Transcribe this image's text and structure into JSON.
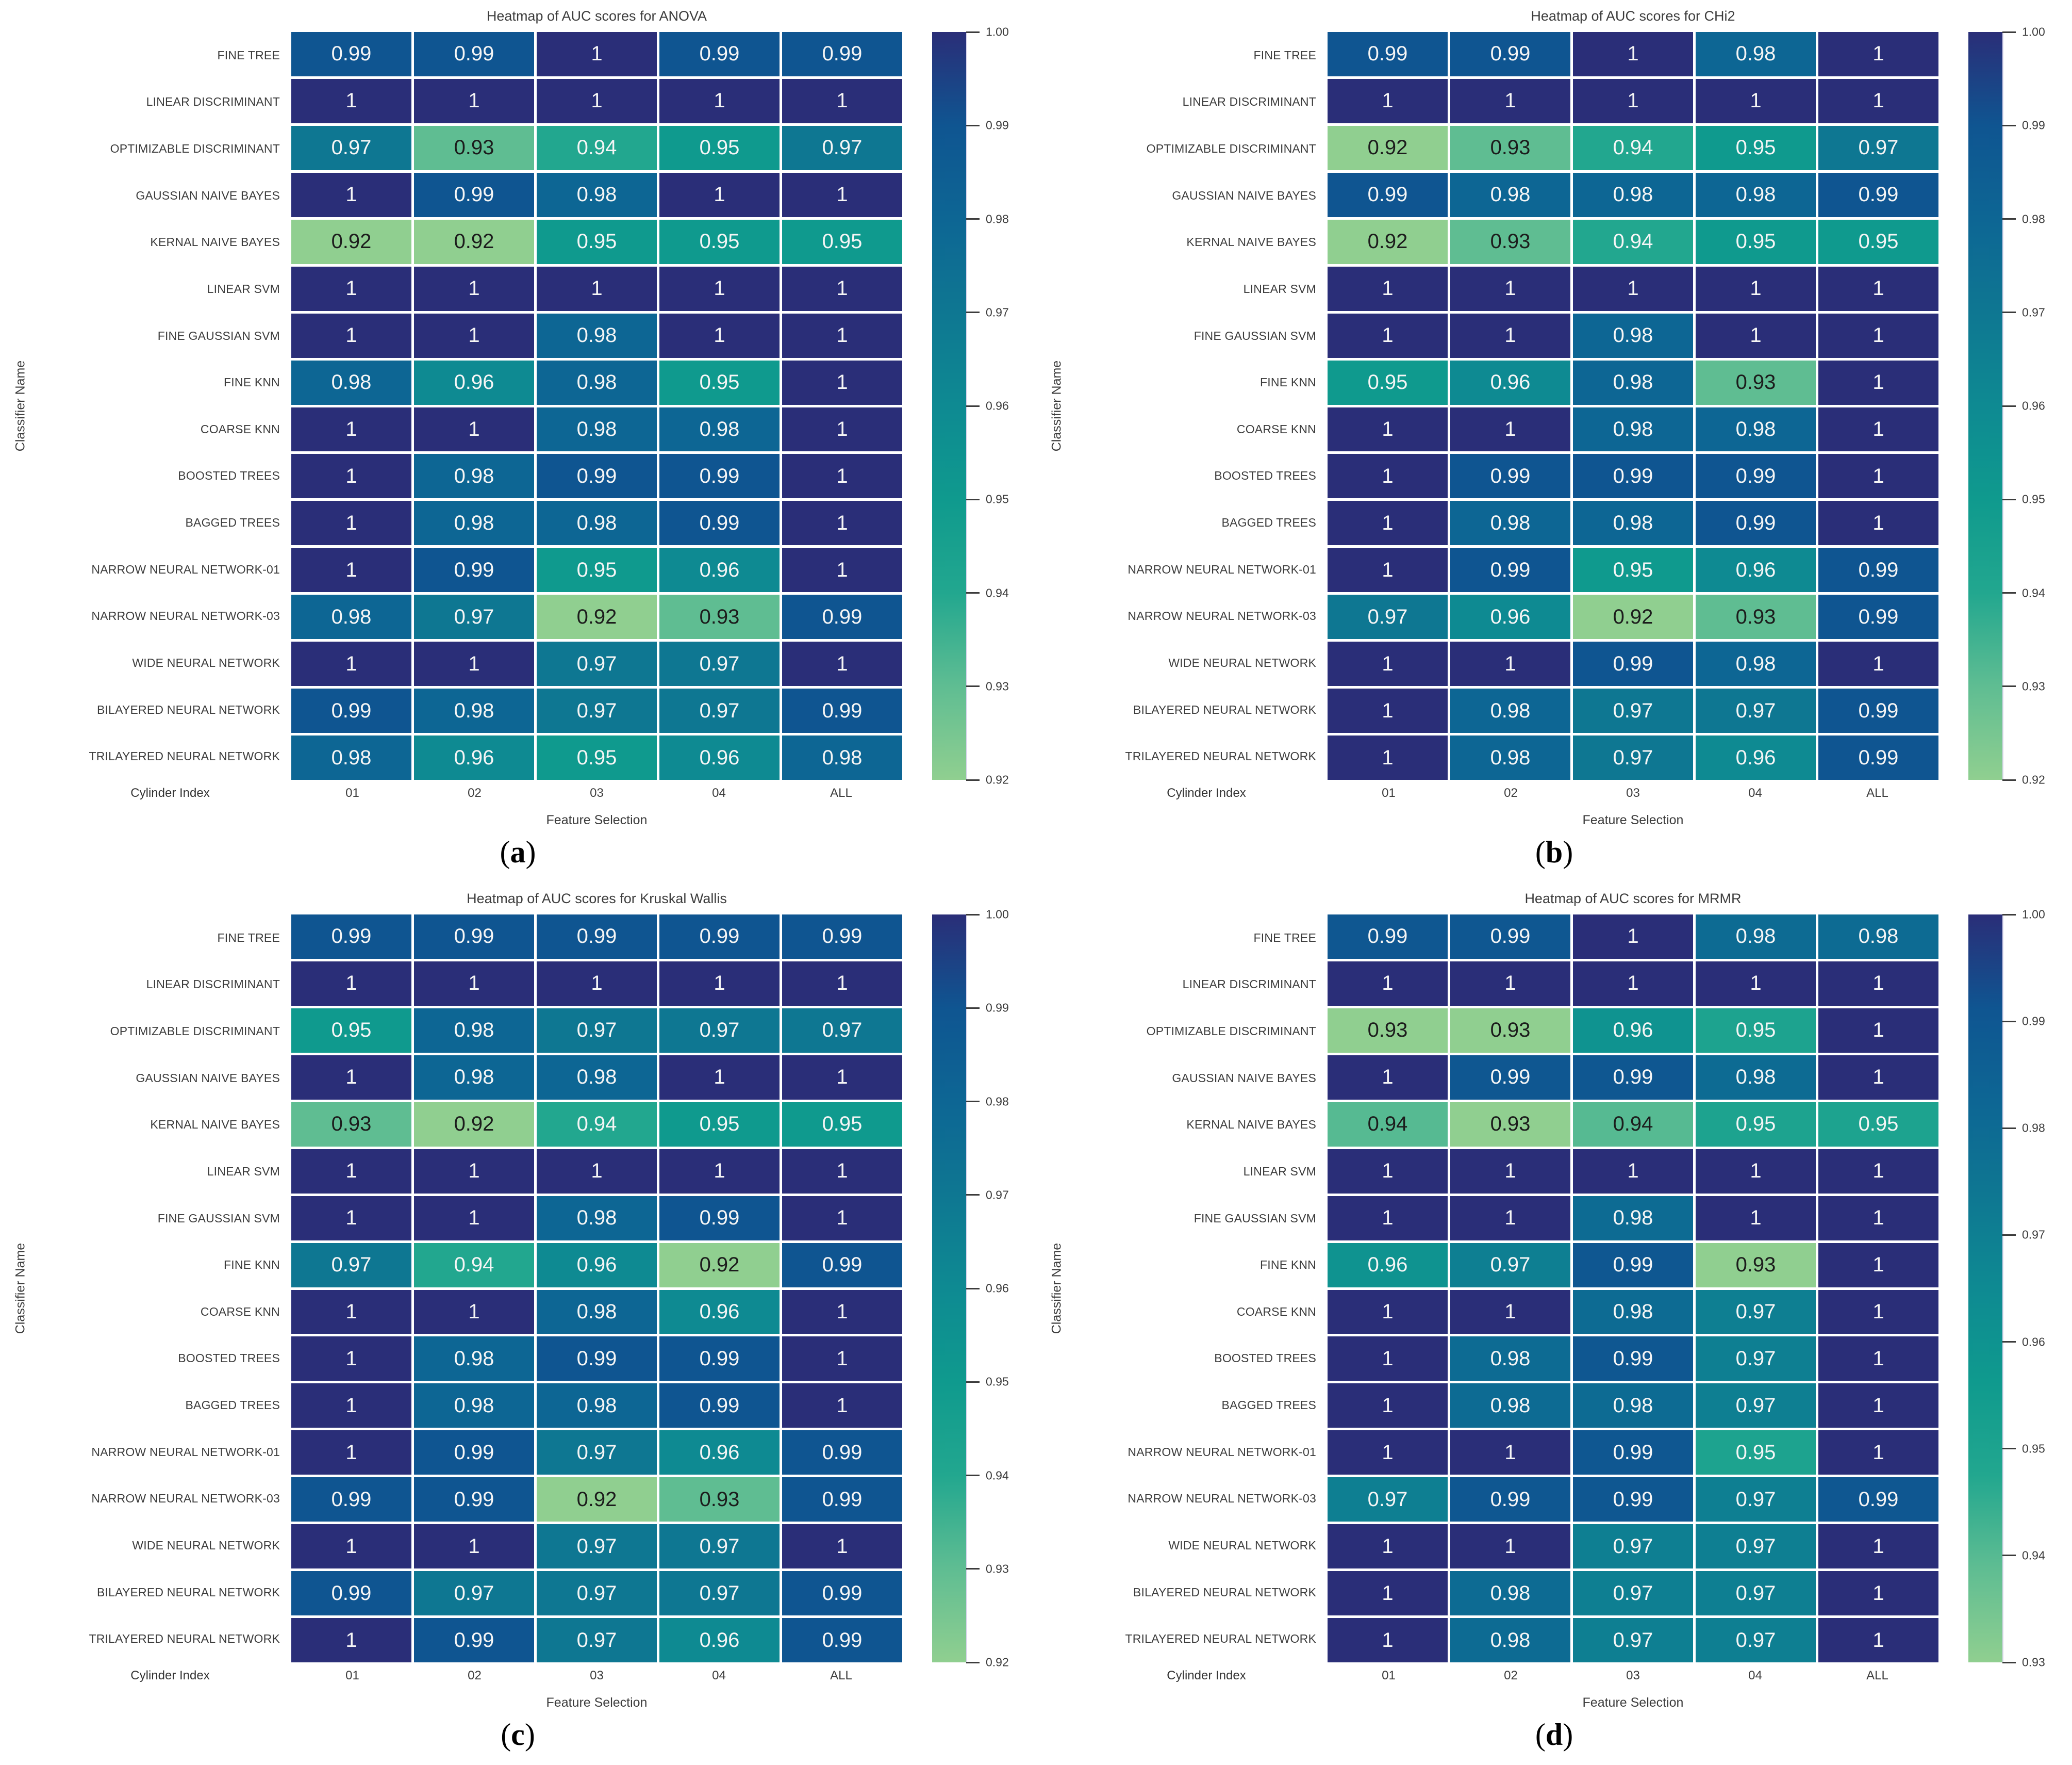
{
  "colors": {
    "background": "#ffffff",
    "colormap_stops": [
      "#90cf90",
      "#5fbd92",
      "#22a78f",
      "#0f9a8e",
      "#0e8a92",
      "#0e7792",
      "#0d6694",
      "#0f5591",
      "#2a2e78"
    ],
    "cell_text_light": "#f5f5f5",
    "cell_text_dark": "#1c1c1c",
    "axis_text": "#3c3c3c"
  },
  "shared": {
    "ylabel": "Classifier Name",
    "xlabel": "Feature Selection",
    "corner_label": "Cylinder Index",
    "columns": [
      "01",
      "02",
      "03",
      "04",
      "ALL"
    ],
    "classifiers": [
      "FINE TREE",
      "LINEAR DISCRIMINANT",
      "OPTIMIZABLE DISCRIMINANT",
      "GAUSSIAN NAIVE BAYES",
      "KERNAL NAIVE BAYES",
      "LINEAR SVM",
      "FINE GAUSSIAN SVM",
      "FINE KNN",
      "COARSE KNN",
      "BOOSTED TREES",
      "BAGGED TREES",
      "NARROW NEURAL NETWORK-01",
      "NARROW NEURAL NETWORK-03",
      "WIDE NEURAL NETWORK",
      "BILAYERED NEURAL NETWORK",
      "TRILAYERED NEURAL NETWORK"
    ]
  },
  "chart_data": [
    {
      "type": "heatmap",
      "panel": "a",
      "caption": "(a)",
      "title": "Heatmap of AUC scores for ANOVA",
      "xlabel": "Feature Selection",
      "ylabel": "Classifier Name",
      "corner_label": "Cylinder Index",
      "columns": [
        "01",
        "02",
        "03",
        "04",
        "ALL"
      ],
      "rows": [
        "FINE TREE",
        "LINEAR DISCRIMINANT",
        "OPTIMIZABLE DISCRIMINANT",
        "GAUSSIAN NAIVE BAYES",
        "KERNAL NAIVE BAYES",
        "LINEAR SVM",
        "FINE GAUSSIAN SVM",
        "FINE KNN",
        "COARSE KNN",
        "BOOSTED TREES",
        "BAGGED TREES",
        "NARROW NEURAL NETWORK-01",
        "NARROW NEURAL NETWORK-03",
        "WIDE NEURAL NETWORK",
        "BILAYERED NEURAL NETWORK",
        "TRILAYERED NEURAL NETWORK"
      ],
      "values": [
        [
          0.99,
          0.99,
          1,
          0.99,
          0.99
        ],
        [
          1,
          1,
          1,
          1,
          1
        ],
        [
          0.97,
          0.93,
          0.94,
          0.95,
          0.97
        ],
        [
          1,
          0.99,
          0.98,
          1,
          1
        ],
        [
          0.92,
          0.92,
          0.95,
          0.95,
          0.95
        ],
        [
          1,
          1,
          1,
          1,
          1
        ],
        [
          1,
          1,
          0.98,
          1,
          1
        ],
        [
          0.98,
          0.96,
          0.98,
          0.95,
          1
        ],
        [
          1,
          1,
          0.98,
          0.98,
          1
        ],
        [
          1,
          0.98,
          0.99,
          0.99,
          1
        ],
        [
          1,
          0.98,
          0.98,
          0.99,
          1
        ],
        [
          1,
          0.99,
          0.95,
          0.96,
          1
        ],
        [
          0.98,
          0.97,
          0.92,
          0.93,
          0.99
        ],
        [
          1,
          1,
          0.97,
          0.97,
          1
        ],
        [
          0.99,
          0.98,
          0.97,
          0.97,
          0.99
        ],
        [
          0.98,
          0.96,
          0.95,
          0.96,
          0.98
        ]
      ],
      "vmin": 0.92,
      "vmax": 1.0,
      "colorbar_ticks": [
        "1.00",
        "0.99",
        "0.98",
        "0.97",
        "0.96",
        "0.95",
        "0.94",
        "0.93",
        "0.92"
      ]
    },
    {
      "type": "heatmap",
      "panel": "b",
      "caption": "(b)",
      "title": "Heatmap of AUC scores for CHi2",
      "xlabel": "Feature Selection",
      "ylabel": "Classifier Name",
      "corner_label": "Cylinder Index",
      "columns": [
        "01",
        "02",
        "03",
        "04",
        "ALL"
      ],
      "rows": [
        "FINE TREE",
        "LINEAR DISCRIMINANT",
        "OPTIMIZABLE DISCRIMINANT",
        "GAUSSIAN NAIVE BAYES",
        "KERNAL NAIVE BAYES",
        "LINEAR SVM",
        "FINE GAUSSIAN SVM",
        "FINE KNN",
        "COARSE KNN",
        "BOOSTED TREES",
        "BAGGED TREES",
        "NARROW NEURAL NETWORK-01",
        "NARROW NEURAL NETWORK-03",
        "WIDE NEURAL NETWORK",
        "BILAYERED NEURAL NETWORK",
        "TRILAYERED NEURAL NETWORK"
      ],
      "values": [
        [
          0.99,
          0.99,
          1,
          0.98,
          1
        ],
        [
          1,
          1,
          1,
          1,
          1
        ],
        [
          0.92,
          0.93,
          0.94,
          0.95,
          0.97
        ],
        [
          0.99,
          0.98,
          0.98,
          0.98,
          0.99
        ],
        [
          0.92,
          0.93,
          0.94,
          0.95,
          0.95
        ],
        [
          1,
          1,
          1,
          1,
          1
        ],
        [
          1,
          1,
          0.98,
          1,
          1
        ],
        [
          0.95,
          0.96,
          0.98,
          0.93,
          1
        ],
        [
          1,
          1,
          0.98,
          0.98,
          1
        ],
        [
          1,
          0.99,
          0.99,
          0.99,
          1
        ],
        [
          1,
          0.98,
          0.98,
          0.99,
          1
        ],
        [
          1,
          0.99,
          0.95,
          0.96,
          0.99
        ],
        [
          0.97,
          0.96,
          0.92,
          0.93,
          0.99
        ],
        [
          1,
          1,
          0.99,
          0.98,
          1
        ],
        [
          1,
          0.98,
          0.97,
          0.97,
          0.99
        ],
        [
          1,
          0.98,
          0.97,
          0.96,
          0.99
        ]
      ],
      "vmin": 0.92,
      "vmax": 1.0,
      "colorbar_ticks": [
        "1.00",
        "0.99",
        "0.98",
        "0.97",
        "0.96",
        "0.95",
        "0.94",
        "0.93",
        "0.92"
      ]
    },
    {
      "type": "heatmap",
      "panel": "c",
      "caption": "(c)",
      "title": "Heatmap of AUC scores for Kruskal Wallis",
      "xlabel": "Feature Selection",
      "ylabel": "Classifier Name",
      "corner_label": "Cylinder Index",
      "columns": [
        "01",
        "02",
        "03",
        "04",
        "ALL"
      ],
      "rows": [
        "FINE TREE",
        "LINEAR DISCRIMINANT",
        "OPTIMIZABLE DISCRIMINANT",
        "GAUSSIAN NAIVE BAYES",
        "KERNAL NAIVE BAYES",
        "LINEAR SVM",
        "FINE GAUSSIAN SVM",
        "FINE KNN",
        "COARSE KNN",
        "BOOSTED TREES",
        "BAGGED TREES",
        "NARROW NEURAL NETWORK-01",
        "NARROW NEURAL NETWORK-03",
        "WIDE NEURAL NETWORK",
        "BILAYERED NEURAL NETWORK",
        "TRILAYERED NEURAL NETWORK"
      ],
      "values": [
        [
          0.99,
          0.99,
          0.99,
          0.99,
          0.99
        ],
        [
          1,
          1,
          1,
          1,
          1
        ],
        [
          0.95,
          0.98,
          0.97,
          0.97,
          0.97
        ],
        [
          1,
          0.98,
          0.98,
          1,
          1
        ],
        [
          0.93,
          0.92,
          0.94,
          0.95,
          0.95
        ],
        [
          1,
          1,
          1,
          1,
          1
        ],
        [
          1,
          1,
          0.98,
          0.99,
          1
        ],
        [
          0.97,
          0.94,
          0.96,
          0.92,
          0.99
        ],
        [
          1,
          1,
          0.98,
          0.96,
          1
        ],
        [
          1,
          0.98,
          0.99,
          0.99,
          1
        ],
        [
          1,
          0.98,
          0.98,
          0.99,
          1
        ],
        [
          1,
          0.99,
          0.97,
          0.96,
          0.99
        ],
        [
          0.99,
          0.99,
          0.92,
          0.93,
          0.99
        ],
        [
          1,
          1,
          0.97,
          0.97,
          1
        ],
        [
          0.99,
          0.97,
          0.97,
          0.97,
          0.99
        ],
        [
          1,
          0.99,
          0.97,
          0.96,
          0.99
        ]
      ],
      "vmin": 0.92,
      "vmax": 1.0,
      "colorbar_ticks": [
        "1.00",
        "0.99",
        "0.98",
        "0.97",
        "0.96",
        "0.95",
        "0.94",
        "0.93",
        "0.92"
      ]
    },
    {
      "type": "heatmap",
      "panel": "d",
      "caption": "(d)",
      "title": "Heatmap of AUC scores for MRMR",
      "xlabel": "Feature Selection",
      "ylabel": "Classifier Name",
      "corner_label": "Cylinder Index",
      "columns": [
        "01",
        "02",
        "03",
        "04",
        "ALL"
      ],
      "rows": [
        "FINE TREE",
        "LINEAR DISCRIMINANT",
        "OPTIMIZABLE DISCRIMINANT",
        "GAUSSIAN NAIVE BAYES",
        "KERNAL NAIVE BAYES",
        "LINEAR SVM",
        "FINE GAUSSIAN SVM",
        "FINE KNN",
        "COARSE KNN",
        "BOOSTED TREES",
        "BAGGED TREES",
        "NARROW NEURAL NETWORK-01",
        "NARROW NEURAL NETWORK-03",
        "WIDE NEURAL NETWORK",
        "BILAYERED NEURAL NETWORK",
        "TRILAYERED NEURAL NETWORK"
      ],
      "values": [
        [
          0.99,
          0.99,
          1,
          0.98,
          0.98
        ],
        [
          1,
          1,
          1,
          1,
          1
        ],
        [
          0.93,
          0.93,
          0.96,
          0.95,
          1
        ],
        [
          1,
          0.99,
          0.99,
          0.98,
          1
        ],
        [
          0.94,
          0.93,
          0.94,
          0.95,
          0.95
        ],
        [
          1,
          1,
          1,
          1,
          1
        ],
        [
          1,
          1,
          0.98,
          1,
          1
        ],
        [
          0.96,
          0.97,
          0.99,
          0.93,
          1
        ],
        [
          1,
          1,
          0.98,
          0.97,
          1
        ],
        [
          1,
          0.98,
          0.99,
          0.97,
          1
        ],
        [
          1,
          0.98,
          0.98,
          0.97,
          1
        ],
        [
          1,
          1,
          0.99,
          0.95,
          1
        ],
        [
          0.97,
          0.99,
          0.99,
          0.97,
          0.99
        ],
        [
          1,
          1,
          0.97,
          0.97,
          1
        ],
        [
          1,
          0.98,
          0.97,
          0.97,
          1
        ],
        [
          1,
          0.98,
          0.97,
          0.97,
          1
        ]
      ],
      "vmin": 0.93,
      "vmax": 1.0,
      "colorbar_ticks": [
        "1.00",
        "0.99",
        "0.98",
        "0.97",
        "0.96",
        "0.95",
        "0.94",
        "0.93"
      ]
    }
  ]
}
